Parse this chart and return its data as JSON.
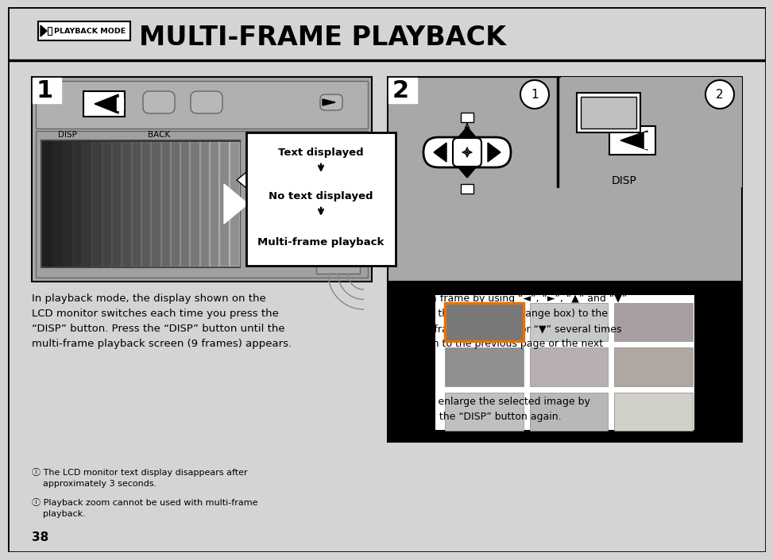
{
  "bg_color": "#d4d4d4",
  "white": "#ffffff",
  "black": "#000000",
  "dark_gray": "#555555",
  "med_gray": "#888888",
  "light_gray": "#bbbbbb",
  "title_text": "MULTI-FRAME PLAYBACK",
  "mode_badge": "PLAYBACK MODE",
  "step1_label": "1",
  "step2_label": "2",
  "disp_label": "DISP",
  "back_label": "BACK",
  "callout_lines": [
    "Text displayed",
    "No text displayed",
    "Multi-frame playback"
  ],
  "body_text": "In playback mode, the display shown on the\nLCD monitor switches each time you press the\n“DISP” button. Press the “DISP” button until the\nmulti-frame playback screen (9 frames) appears.",
  "circle1_label": "①",
  "circle2_label": "②",
  "right_text1": "①Select a frame by using “◄”, “►”, “▲” and “▼”\n  to move the cursor (the orange box) to the\n  desired frame. Press “▲” or “▼” several times\n  to switch to the previous page or the next\n  page.",
  "right_text2": "②You can enlarge the selected image by\n  pressing the “DISP” button again.",
  "note1": "ⓘ The LCD monitor text display disappears after\n    approximately 3 seconds.",
  "note2": "ⓘ Playback zoom cannot be used with multi-frame\n    playback.",
  "page_num": "38",
  "frame_colors": [
    [
      "#787878",
      "#c8c8c8",
      "#a8a0a0"
    ],
    [
      "#909090",
      "#b8b0b0",
      "#b0a8a0"
    ],
    [
      "#c0c0c0",
      "#b8b8b8",
      "#d0d0c8"
    ]
  ]
}
